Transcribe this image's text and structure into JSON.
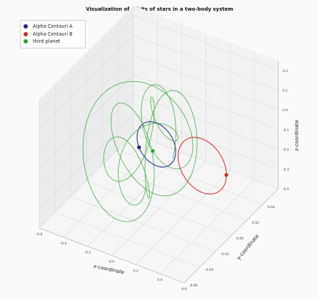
{
  "chart_data": {
    "type": "line",
    "projection": "3d",
    "title": "Visualization of orbits of stars in a two-body system",
    "xlabel": "x-coordinate",
    "ylabel": "y-coordinate",
    "zlabel": "z-coordinate",
    "xlim": [
      -0.6,
      0.6
    ],
    "ylim": [
      -0.06,
      0.06
    ],
    "zlim": [
      -0.4,
      0.25
    ],
    "x_ticks": [
      "-0.6",
      "-0.4",
      "-0.2",
      "0.0",
      "0.2",
      "0.4",
      "0.6"
    ],
    "y_ticks": [
      "-0.06",
      "-0.04",
      "-0.02",
      "0.00",
      "0.02",
      "0.04"
    ],
    "z_ticks": [
      "0.2",
      "0.1",
      "0.0",
      "-0.1",
      "-0.2",
      "-0.3",
      "-0.4"
    ],
    "grid": true,
    "legend_position": "top-left",
    "series": [
      {
        "name": "Alpha Centauri A",
        "color": "#1f1f8f",
        "style": "orbit",
        "center": [
          -0.02,
          0.0,
          -0.08
        ],
        "radius": 0.16,
        "marker_angle": 3.6
      },
      {
        "name": "Alpha Centauri B",
        "color": "#d62728",
        "style": "orbit",
        "center": [
          0.36,
          0.0,
          -0.1
        ],
        "radius": 0.2,
        "marker_angle": 6.28
      },
      {
        "name": "third planet",
        "color": "#2ca02c",
        "style": "trajectory",
        "marker": [
          -0.05,
          0.0,
          -0.12
        ]
      }
    ]
  }
}
